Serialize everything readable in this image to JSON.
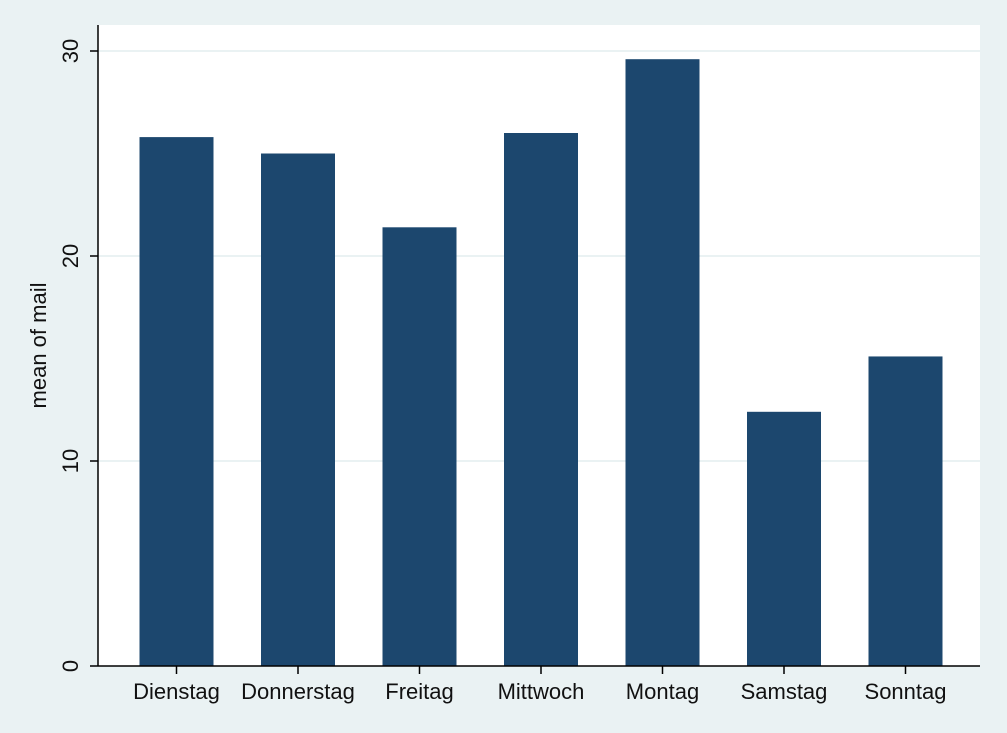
{
  "chart_data": {
    "type": "bar",
    "title": "",
    "xlabel": "",
    "ylabel": "mean of mail",
    "categories": [
      "Dienstag",
      "Donnerstag",
      "Freitag",
      "Mittwoch",
      "Montag",
      "Samstag",
      "Sonntag"
    ],
    "values": [
      25.8,
      25.0,
      21.4,
      26.0,
      29.6,
      12.4,
      15.1
    ],
    "ylim": [
      0,
      30
    ],
    "yticks": [
      "0",
      "10",
      "20",
      "30"
    ],
    "grid": true,
    "legend": "none",
    "colors": {
      "bar": "#1c476e",
      "background": "#eaf2f3",
      "plot_background": "#ffffff",
      "grid": "#eaf2f3",
      "axis": "#000000"
    }
  }
}
